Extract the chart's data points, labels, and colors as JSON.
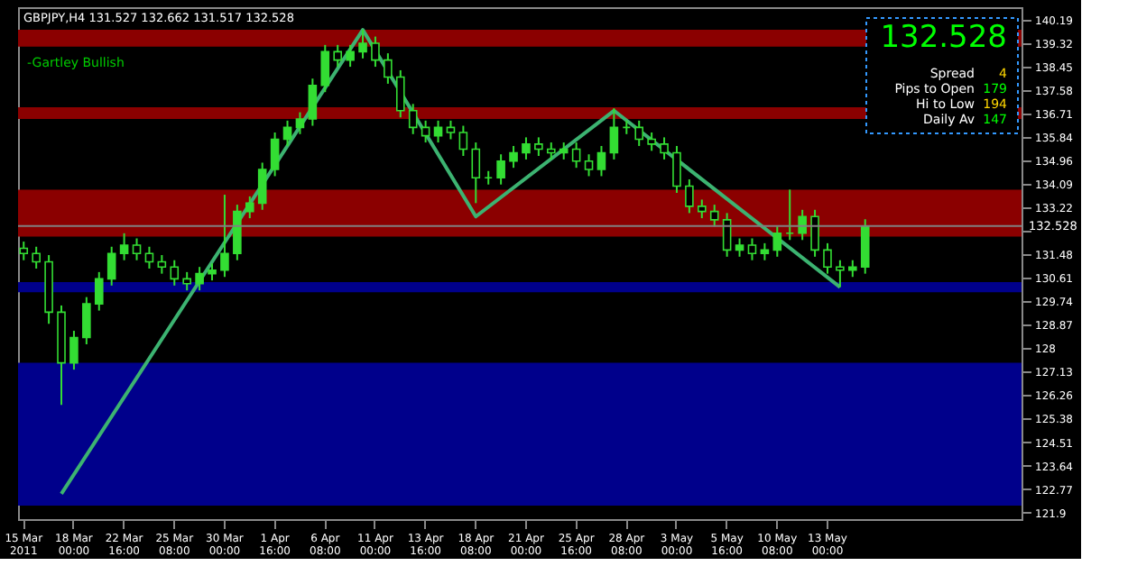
{
  "chart_data": {
    "type": "candlestick",
    "title": "GBPJPY,H4  131.527 132.662 131.517 132.528",
    "annotations": [
      "-Gartley Bullish",
      "132.528",
      "Spread",
      "4",
      "Pips to Open",
      "179",
      "Hi to Low",
      "194",
      "Daily Av",
      "147"
    ],
    "categories": [
      "15 Mar 2011",
      null,
      null,
      null,
      "18 Mar 00:00",
      null,
      null,
      null,
      "22 Mar 16:00",
      null,
      null,
      null,
      "25 Mar 08:00",
      null,
      null,
      null,
      "30 Mar 00:00",
      null,
      null,
      null,
      "1 Apr 16:00",
      null,
      null,
      null,
      "6 Apr 08:00",
      null,
      null,
      null,
      "11 Apr 00:00",
      null,
      null,
      null,
      "13 Apr 16:00",
      null,
      null,
      null,
      "18 Apr 08:00",
      null,
      null,
      null,
      "21 Apr 00:00",
      null,
      null,
      null,
      "25 Apr 16:00",
      null,
      null,
      null,
      "28 Apr 08:00",
      null,
      null,
      null,
      "3 May 00:00",
      null,
      null,
      null,
      "5 May 16:00",
      null,
      null,
      null,
      "10 May 08:00",
      null,
      null,
      null,
      "13 May 00:00",
      null,
      null,
      null,
      null,
      null,
      null,
      null,
      null,
      null,
      null,
      null,
      null,
      null,
      null,
      null
    ],
    "series": [
      {
        "color": "#33dd33",
        "ohlc": [
          [
            131.7,
            131.95,
            131.26,
            131.51
          ],
          [
            131.51,
            131.76,
            130.95,
            131.2
          ],
          [
            131.2,
            131.45,
            128.9,
            129.33
          ],
          [
            129.33,
            129.58,
            125.89,
            127.45
          ],
          [
            127.45,
            128.64,
            127.2,
            128.39
          ],
          [
            128.39,
            129.89,
            128.14,
            129.64
          ],
          [
            129.64,
            130.82,
            129.39,
            130.57
          ],
          [
            130.57,
            131.76,
            130.32,
            131.51
          ],
          [
            131.51,
            132.26,
            131.26,
            131.82
          ],
          [
            131.82,
            132.07,
            131.26,
            131.51
          ],
          [
            131.51,
            131.76,
            130.95,
            131.2
          ],
          [
            131.2,
            131.45,
            130.76,
            131.01
          ],
          [
            131.01,
            131.26,
            130.32,
            130.57
          ],
          [
            130.57,
            130.82,
            130.14,
            130.39
          ],
          [
            130.39,
            131.01,
            130.14,
            130.76
          ],
          [
            130.76,
            131.14,
            130.51,
            130.89
          ],
          [
            130.89,
            133.69,
            130.64,
            131.51
          ],
          [
            131.51,
            133.32,
            131.26,
            133.07
          ],
          [
            133.07,
            133.63,
            132.82,
            133.38
          ],
          [
            133.38,
            134.88,
            133.13,
            134.63
          ],
          [
            134.63,
            136.0,
            134.38,
            135.75
          ],
          [
            135.75,
            136.44,
            135.5,
            136.19
          ],
          [
            136.19,
            136.75,
            135.94,
            136.5
          ],
          [
            136.5,
            138.0,
            136.25,
            137.75
          ],
          [
            137.75,
            139.25,
            137.5,
            139.0
          ],
          [
            139.0,
            139.25,
            138.44,
            138.69
          ],
          [
            138.69,
            139.25,
            138.44,
            139.0
          ],
          [
            139.0,
            139.81,
            138.75,
            139.31
          ],
          [
            139.31,
            139.56,
            138.44,
            138.69
          ],
          [
            138.69,
            138.94,
            137.81,
            138.06
          ],
          [
            138.06,
            138.31,
            136.56,
            136.81
          ],
          [
            136.81,
            137.06,
            135.94,
            136.19
          ],
          [
            136.19,
            136.44,
            135.63,
            135.88
          ],
          [
            135.88,
            136.44,
            135.63,
            136.19
          ],
          [
            136.19,
            136.44,
            135.75,
            136.0
          ],
          [
            136.0,
            136.25,
            135.13,
            135.38
          ],
          [
            135.38,
            135.63,
            133.38,
            134.32
          ],
          [
            134.32,
            134.57,
            134.07,
            134.32
          ],
          [
            134.32,
            135.19,
            134.07,
            134.94
          ],
          [
            134.94,
            135.5,
            134.69,
            135.25
          ],
          [
            135.25,
            135.82,
            135.0,
            135.57
          ],
          [
            135.57,
            135.82,
            135.13,
            135.38
          ],
          [
            135.38,
            135.63,
            135.0,
            135.25
          ],
          [
            135.25,
            135.63,
            135.0,
            135.38
          ],
          [
            135.38,
            135.63,
            134.69,
            134.94
          ],
          [
            134.94,
            135.19,
            134.38,
            134.63
          ],
          [
            134.63,
            135.5,
            134.38,
            135.25
          ],
          [
            135.25,
            136.9,
            135.0,
            136.19
          ],
          [
            136.19,
            136.44,
            135.94,
            136.19
          ],
          [
            136.19,
            136.44,
            135.5,
            135.75
          ],
          [
            135.75,
            136.0,
            135.32,
            135.57
          ],
          [
            135.57,
            135.82,
            135.0,
            135.25
          ],
          [
            135.25,
            135.5,
            133.76,
            134.01
          ],
          [
            134.01,
            134.26,
            133.01,
            133.26
          ],
          [
            133.26,
            133.51,
            132.82,
            133.07
          ],
          [
            133.07,
            133.32,
            132.51,
            132.76
          ],
          [
            132.76,
            133.01,
            131.39,
            131.64
          ],
          [
            131.64,
            132.07,
            131.39,
            131.82
          ],
          [
            131.82,
            132.07,
            131.26,
            131.51
          ],
          [
            131.51,
            131.89,
            131.26,
            131.64
          ],
          [
            131.64,
            132.51,
            131.39,
            132.26
          ],
          [
            132.26,
            133.88,
            132.01,
            132.26
          ],
          [
            132.26,
            133.13,
            132.01,
            132.88
          ],
          [
            132.88,
            133.13,
            131.39,
            131.64
          ],
          [
            131.64,
            131.89,
            130.76,
            131.01
          ],
          [
            131.01,
            131.26,
            130.26,
            130.89
          ],
          [
            130.89,
            131.26,
            130.64,
            131.01
          ],
          [
            131.01,
            132.78,
            130.76,
            132.53
          ],
          null,
          null,
          null,
          null,
          null,
          null,
          null,
          null,
          null,
          null,
          null,
          null
        ]
      },
      {
        "type": "line",
        "color": "#3cb371",
        "values": [
          null,
          null,
          null,
          122.59,
          null,
          null,
          null,
          null,
          null,
          null,
          null,
          null,
          null,
          null,
          null,
          null,
          null,
          null,
          null,
          null,
          null,
          null,
          null,
          null,
          null,
          null,
          null,
          139.81,
          null,
          null,
          null,
          null,
          null,
          null,
          null,
          null,
          132.88,
          null,
          null,
          null,
          null,
          null,
          null,
          null,
          null,
          null,
          null,
          136.81,
          null,
          null,
          null,
          null,
          null,
          null,
          null,
          null,
          null,
          null,
          null,
          null,
          null,
          null,
          null,
          null,
          null,
          130.26,
          null,
          null,
          null,
          null,
          null,
          null,
          null,
          null,
          null,
          null,
          null,
          null,
          null,
          null
        ]
      }
    ],
    "ylim": [
      121.65,
      140.65
    ],
    "yticks": [
      121.9,
      122.77,
      123.64,
      124.51,
      125.38,
      126.26,
      127.13,
      128,
      128.87,
      129.74,
      130.61,
      131.48,
      {
        "value": 132.35,
        "label": null
      },
      133.22,
      134.09,
      134.96,
      135.84,
      136.71,
      137.58,
      138.45,
      139.32,
      140.19
    ],
    "ref_lines": [
      {
        "axis": "y",
        "value": 132.528,
        "label": "132.528",
        "color": "#808080"
      }
    ],
    "bands": [
      {
        "axis": "y",
        "from": 139.19,
        "to": 139.81,
        "color": "#8b0000"
      },
      {
        "axis": "y",
        "from": 136.5,
        "to": 136.94,
        "color": "#8b0000"
      },
      {
        "axis": "y",
        "from": 132.14,
        "to": 133.88,
        "color": "#8b0000"
      },
      {
        "axis": "y",
        "from": 130.07,
        "to": 130.45,
        "color": "#00008b"
      },
      {
        "axis": "y",
        "from": 122.15,
        "to": 127.45,
        "color": "#00008b"
      }
    ],
    "grid": false
  }
}
